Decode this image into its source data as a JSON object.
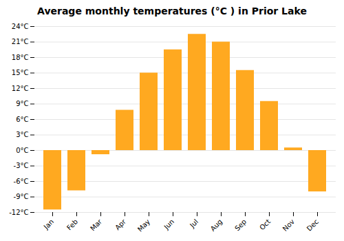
{
  "chart_data": {
    "type": "bar",
    "title": "Average monthly temperatures (°C ) in Prior Lake",
    "categories": [
      "Jan",
      "Feb",
      "Mar",
      "Apr",
      "May",
      "Jun",
      "Jul",
      "Aug",
      "Sep",
      "Oct",
      "Nov",
      "Dec"
    ],
    "values": [
      -11.5,
      -7.8,
      -0.8,
      7.8,
      15.0,
      19.5,
      22.5,
      21.0,
      15.5,
      9.5,
      0.5,
      -8.0
    ],
    "color": "#FFA920",
    "ylim": [
      -12,
      24
    ],
    "yticks": [
      {
        "value": -12,
        "label": "-12°C"
      },
      {
        "value": -9,
        "label": "-9°C"
      },
      {
        "value": -6,
        "label": "-6°C"
      },
      {
        "value": -3,
        "label": "-3°C"
      },
      {
        "value": 0,
        "label": "0°C"
      },
      {
        "value": 3,
        "label": "3°C"
      },
      {
        "value": 6,
        "label": "6°C"
      },
      {
        "value": 9,
        "label": "9°C"
      },
      {
        "value": 12,
        "label": "12°C"
      },
      {
        "value": 15,
        "label": "15°C"
      },
      {
        "value": 18,
        "label": "18°C"
      },
      {
        "value": 21,
        "label": "21°C"
      },
      {
        "value": 24,
        "label": "24°C"
      }
    ],
    "grid": true
  }
}
